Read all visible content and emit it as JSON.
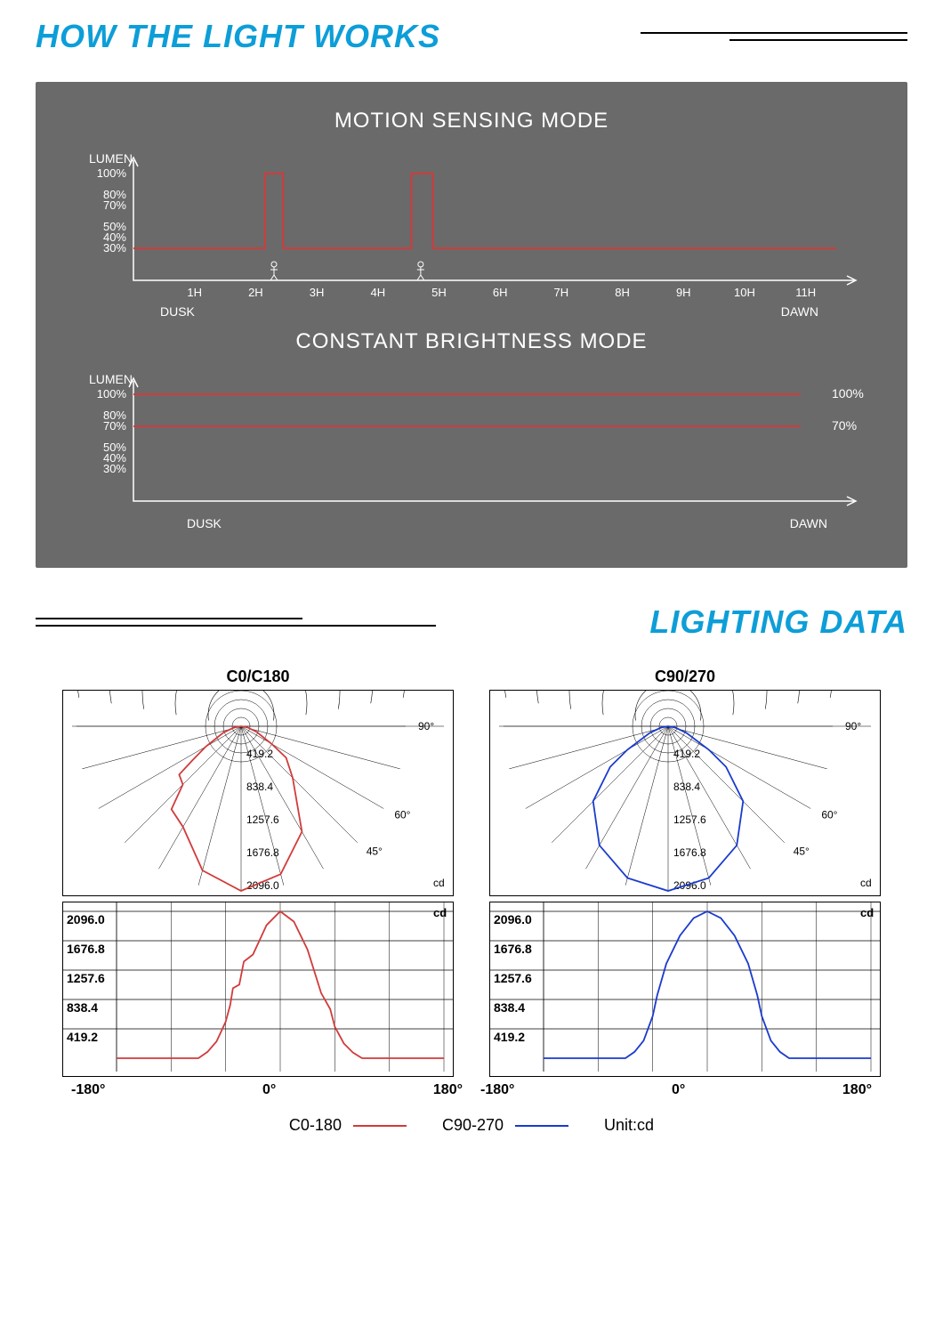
{
  "section1_title": "HOW THE LIGHT WORKS",
  "section2_title": "LIGHTING DATA",
  "panel": {
    "bg_color": "#6a6a6a",
    "text_color": "#ffffff",
    "line_color": "#d13b3b",
    "chart1": {
      "title": "MOTION SENSING MODE",
      "y_label": "LUMEN",
      "y_ticks": [
        "100%",
        "80%",
        "70%",
        "50%",
        "40%",
        "30%"
      ],
      "y_tick_vals": [
        100,
        80,
        70,
        50,
        40,
        30
      ],
      "x_ticks": [
        "1H",
        "2H",
        "3H",
        "4H",
        "5H",
        "6H",
        "7H",
        "8H",
        "9H",
        "10H",
        "11H"
      ],
      "x_left_label": "DUSK",
      "x_right_label": "DAWN",
      "baseline": 30,
      "pulses": [
        {
          "start_h": 2.15,
          "end_h": 2.45,
          "level": 100
        },
        {
          "start_h": 4.55,
          "end_h": 4.9,
          "level": 100
        }
      ],
      "person_positions_h": [
        2.3,
        4.7
      ]
    },
    "chart2": {
      "title": "CONSTANT BRIGHTNESS MODE",
      "y_label": "LUMEN",
      "y_ticks": [
        "100%",
        "80%",
        "70%",
        "50%",
        "40%",
        "30%"
      ],
      "y_tick_vals": [
        100,
        80,
        70,
        50,
        40,
        30
      ],
      "x_left_label": "DUSK",
      "x_right_label": "DAWN",
      "lines": [
        {
          "level": 100,
          "right_label": "100%"
        },
        {
          "level": 70,
          "right_label": "70%"
        }
      ]
    }
  },
  "polar": {
    "ring_values": [
      "419.2",
      "838.4",
      "1257.6",
      "1676.8",
      "2096.0"
    ],
    "angle_labels": [
      "45°",
      "60°",
      "90°"
    ],
    "cd_label": "cd",
    "left": {
      "title": "C0/C180",
      "curve_color": "#d13b3b",
      "polar_radii_deg": {
        "0": 2096,
        "15": 1950,
        "30": 1550,
        "45": 930,
        "55": 700,
        "60": 450,
        "70": 210,
        "80": 80,
        "90": 0,
        "-15": 1900,
        "-30": 1480,
        "-40": 1380,
        "-45": 1050,
        "-52": 1000,
        "-55": 760,
        "-60": 520,
        "-70": 240,
        "-80": 90,
        "-90": 0
      }
    },
    "right": {
      "title": "C90/270",
      "curve_color": "#1a3bce",
      "polar_radii_deg": {
        "0": 2096,
        "15": 2000,
        "30": 1750,
        "45": 1350,
        "55": 900,
        "60": 600,
        "70": 250,
        "80": 90,
        "90": 0,
        "-15": 2000,
        "-30": 1750,
        "-45": 1350,
        "-55": 900,
        "-60": 600,
        "-70": 250,
        "-80": 90,
        "-90": 0
      }
    }
  },
  "cartesian": {
    "y_ticks": [
      "2096.0",
      "1676.8",
      "1257.6",
      "838.4",
      "419.2"
    ],
    "y_tick_vals": [
      2096.0,
      1676.8,
      1257.6,
      838.4,
      419.2
    ],
    "x_ticks": [
      "-180°",
      "0°",
      "180°"
    ],
    "x_range": [
      -180,
      180
    ],
    "cd_label": "cd"
  },
  "legend": {
    "item1": "C0-180",
    "item1_color": "#d13b3b",
    "item2": "C90-270",
    "item2_color": "#1a3bce",
    "unit": "Unit:cd"
  }
}
